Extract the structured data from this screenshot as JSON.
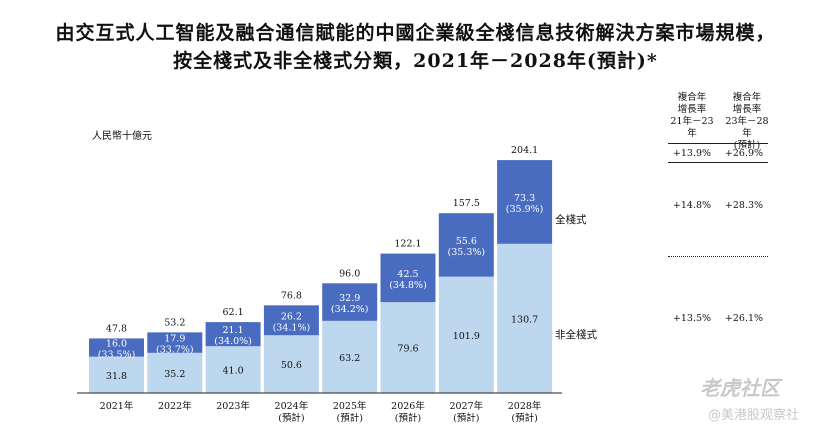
{
  "title_line1": "由交互式人工智能及融合通信賦能的中國企業級全棧信息技術解決方案市場規模，",
  "title_line2": "按全棧式及非全棧式分類，2021年－2028年(預計)*",
  "chart_data": {
    "type": "bar",
    "stacked": true,
    "unit_label": "人民幣十億元",
    "categories": [
      "2021年",
      "2022年",
      "2023年",
      "2024年",
      "2025年",
      "2026年",
      "2027年",
      "2028年"
    ],
    "category_sublabels": [
      "",
      "",
      "",
      "(預計)",
      "(預計)",
      "(預計)",
      "(預計)",
      "(預計)"
    ],
    "totals": [
      "47.8",
      "53.2",
      "62.1",
      "76.8",
      "96.0",
      "122.1",
      "157.5",
      "204.1"
    ],
    "series": [
      {
        "name": "非全棧式",
        "color": "#bdd7ee",
        "values": [
          31.8,
          35.2,
          41.0,
          50.6,
          63.2,
          79.6,
          101.9,
          130.7
        ],
        "labels": [
          "31.8",
          "35.2",
          "41.0",
          "50.6",
          "63.2",
          "79.6",
          "101.9",
          "130.7"
        ]
      },
      {
        "name": "全棧式",
        "color": "#4a6cc0",
        "values": [
          16.0,
          17.9,
          21.1,
          26.2,
          32.9,
          42.5,
          55.6,
          73.3
        ],
        "labels": [
          "16.0",
          "17.9",
          "21.1",
          "26.2",
          "32.9",
          "42.5",
          "55.6",
          "73.3"
        ],
        "shares": [
          "(33.5%)",
          "(33.7%)",
          "(34.0%)",
          "(34.1%)",
          "(34.2%)",
          "(34.8%)",
          "(35.3%)",
          "(35.9%)"
        ]
      }
    ],
    "ylim": [
      0,
      204.1
    ]
  },
  "cagr": {
    "head1": [
      "複合年",
      "增長率",
      "21年－23年"
    ],
    "head2": [
      "複合年",
      "增長率",
      "23年－28年",
      "(預計)"
    ],
    "rows": [
      {
        "a": "+13.9%",
        "b": "+26.9%"
      },
      {
        "a": "+14.8%",
        "b": "+28.3%"
      },
      {
        "a": "+13.5%",
        "b": "+26.1%"
      }
    ]
  },
  "watermark": {
    "line1": "老虎社区",
    "line2": "@美港股观察社"
  }
}
